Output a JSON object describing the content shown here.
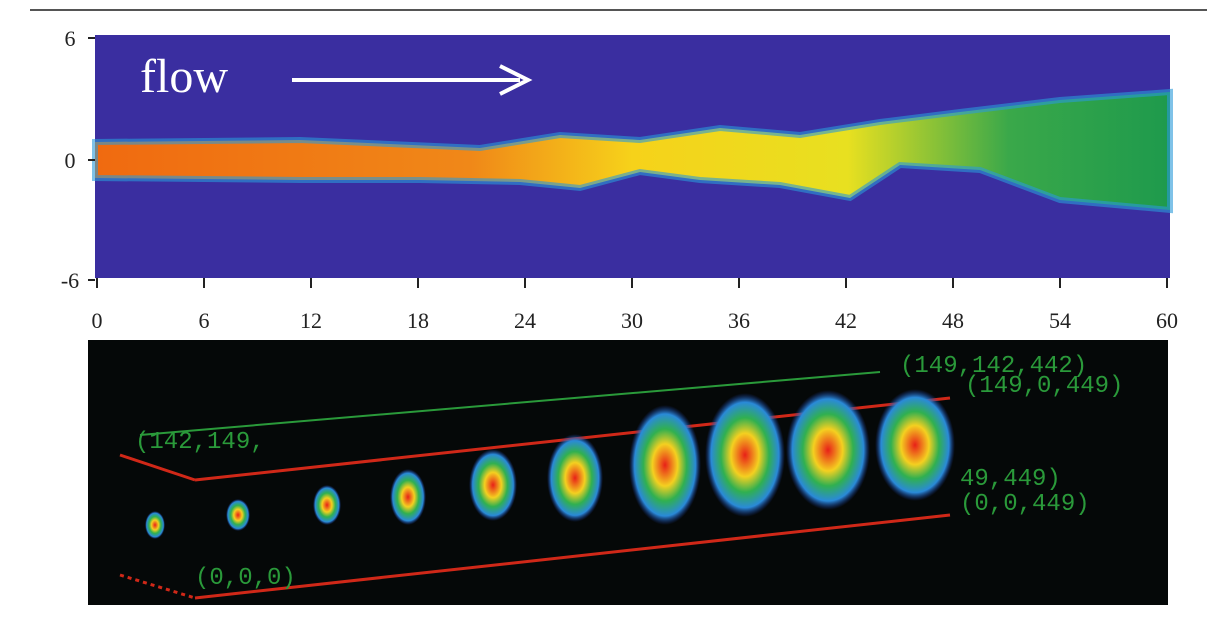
{
  "top_panel": {
    "annotation": "flow",
    "y_ticks": [
      6,
      0,
      -6
    ],
    "x_ticks": [
      0,
      6,
      12,
      18,
      24,
      30,
      36,
      42,
      48,
      54,
      60
    ]
  },
  "bottom_panel": {
    "labels": [
      "(149,142,442)",
      "(149,0,449)",
      "(142,149,",
      "49,449)",
      "(0,0,449)",
      "(0,0,0)"
    ]
  }
}
